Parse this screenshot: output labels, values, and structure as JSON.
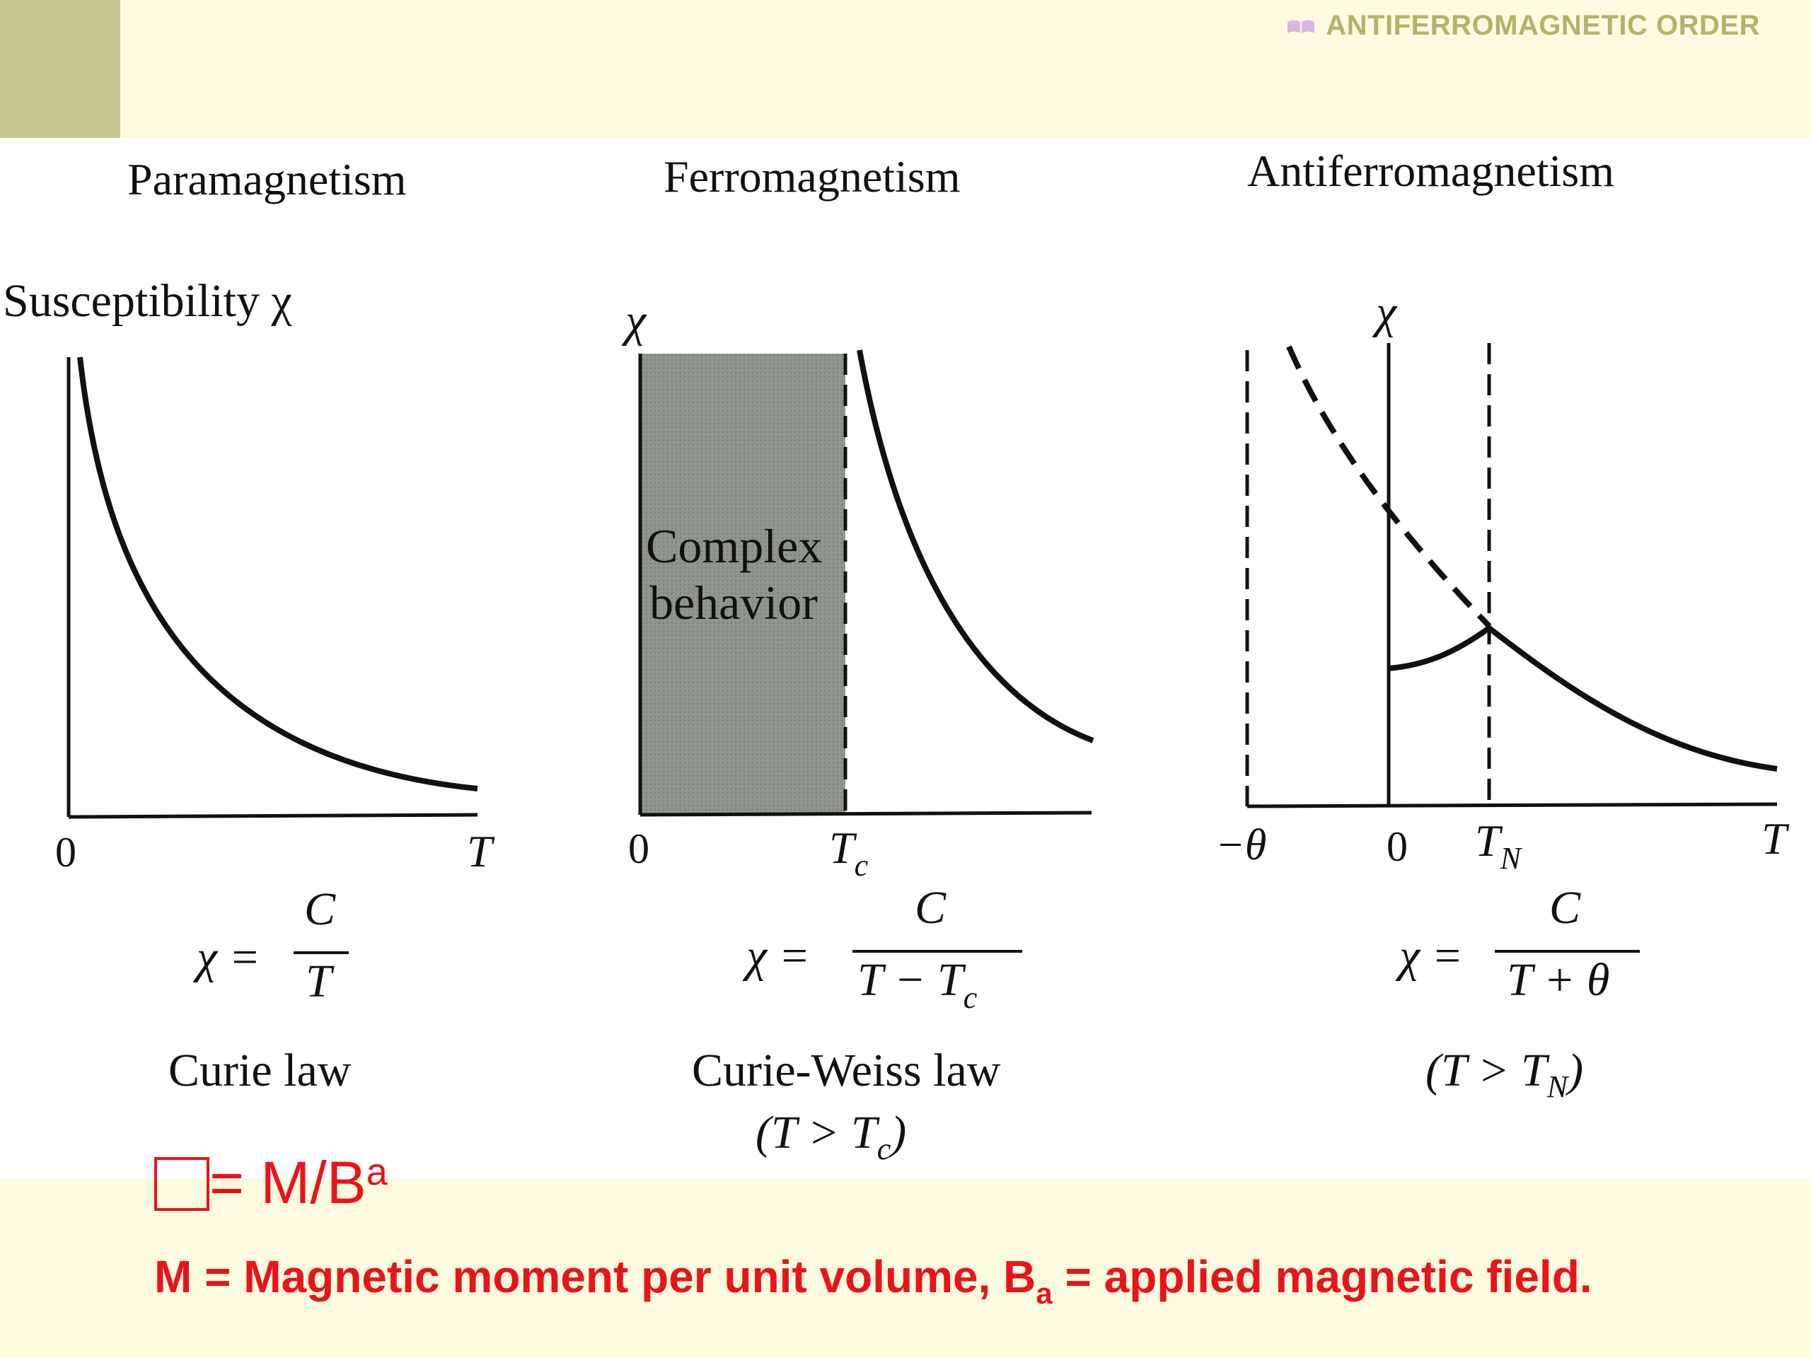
{
  "header": {
    "title": "ANTIFERROMAGNETIC ORDER",
    "book_icon_color": "#d8b8e0"
  },
  "panels": {
    "para": {
      "title": "Paramagnetism",
      "y_label": "Susceptibility χ",
      "x_origin": "0",
      "x_end": "T",
      "formula_lhs": "χ =",
      "formula_num": "C",
      "formula_den": "T",
      "law": "Curie law"
    },
    "ferro": {
      "title": "Ferromagnetism",
      "y_label": "χ",
      "region_line1": "Complex",
      "region_line2": "behavior",
      "x_origin": "0",
      "tc_T": "T",
      "tc_sub": "c",
      "formula_lhs": "χ =",
      "formula_num": "C",
      "formula_den_a": "T − T",
      "formula_den_sub": "c",
      "law": "Curie-Weiss law",
      "cond_a": "(T > T",
      "cond_sub": "c",
      "cond_b": ")"
    },
    "anti": {
      "title": "Antiferromagnetism",
      "y_label": "χ",
      "x_neg_theta": "−θ",
      "x_origin": "0",
      "tn_T": "T",
      "tn_sub": "N",
      "x_end": "T",
      "formula_lhs": "χ =",
      "formula_num": "C",
      "formula_den": "T + θ",
      "cond_a": "(T > T",
      "cond_sub": "N",
      "cond_b": ")"
    }
  },
  "definition": {
    "rhs": "= M/B",
    "sub": "a"
  },
  "description": {
    "part1": "M = Magnetic moment per unit volume, B",
    "sub": "a",
    "part2": " = applied magnetic field."
  }
}
